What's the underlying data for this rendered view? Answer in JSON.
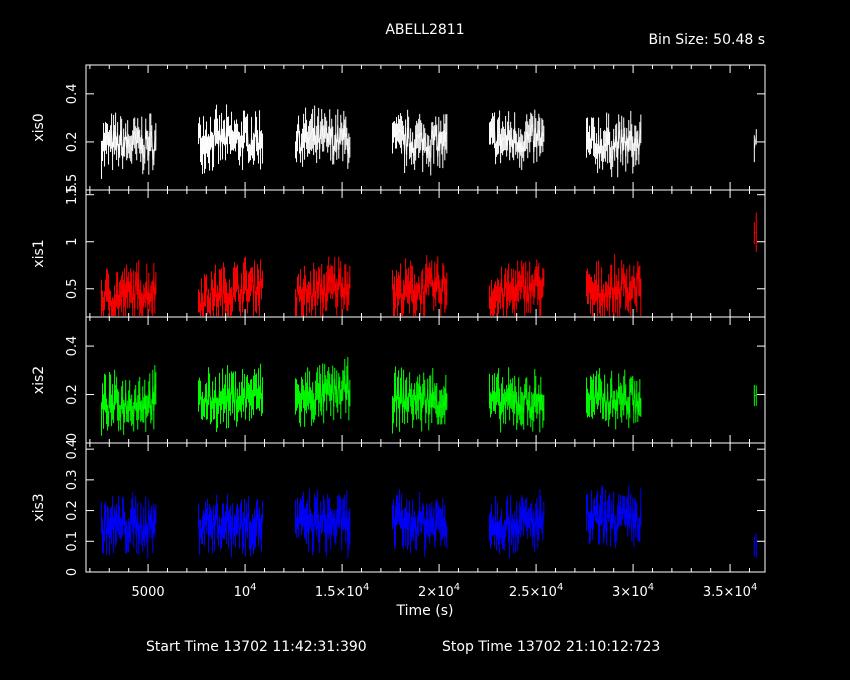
{
  "header": {
    "title": "ABELL2811",
    "bin_size": "Bin Size: 50.48 s"
  },
  "footer": {
    "start_time": "Start Time 13702 11:42:31:390",
    "stop_time": "Stop Time 13702 21:10:12:723"
  },
  "chart_data": {
    "type": "line",
    "xlabel": "Time (s)",
    "xlim": [
      1800,
      36800
    ],
    "x_ticks": [
      {
        "value": 5000,
        "label": "5000"
      },
      {
        "value": 10000,
        "label": "10",
        "exp": "4"
      },
      {
        "value": 15000,
        "label": "1.5×10",
        "exp": "4"
      },
      {
        "value": 20000,
        "label": "2×10",
        "exp": "4"
      },
      {
        "value": 25000,
        "label": "2.5×10",
        "exp": "4"
      },
      {
        "value": 30000,
        "label": "3×10",
        "exp": "4"
      },
      {
        "value": 35000,
        "label": "3.5×10",
        "exp": "4"
      }
    ],
    "segments": [
      [
        2600,
        5400
      ],
      [
        7600,
        10900
      ],
      [
        12600,
        15400
      ],
      [
        17600,
        20400
      ],
      [
        22600,
        25400
      ],
      [
        27600,
        30400
      ],
      [
        36250,
        36350
      ]
    ],
    "panels": [
      {
        "name": "xis0",
        "color": "#ffffff",
        "ylim": [
          0.0,
          0.52
        ],
        "ticks": [
          {
            "v": 0.2,
            "l": "0.2"
          },
          {
            "v": 0.4,
            "l": "0.4"
          }
        ],
        "bottom_label": "1.5",
        "levels": [
          0.19,
          0.21,
          0.21,
          0.2,
          0.21,
          0.19,
          0.22
        ],
        "trend": [
          0,
          0,
          0,
          0,
          0,
          0,
          0
        ]
      },
      {
        "name": "xis1",
        "color": "#ff0000",
        "ylim": [
          0.2,
          1.55
        ],
        "ticks": [
          {
            "v": 0.5,
            "l": "0.5"
          },
          {
            "v": 1.0,
            "l": "1"
          },
          {
            "v": 1.5,
            "l": "1.5"
          }
        ],
        "levels": [
          0.42,
          0.44,
          0.45,
          0.47,
          0.45,
          0.46,
          1.0
        ],
        "trend": [
          0.1,
          0.16,
          0.18,
          0.08,
          0.14,
          0.12,
          0
        ]
      },
      {
        "name": "xis2",
        "color": "#00ff00",
        "ylim": [
          0.0,
          0.52
        ],
        "ticks": [
          {
            "v": 0.2,
            "l": "0.2"
          },
          {
            "v": 0.4,
            "l": "0.4"
          }
        ],
        "bottom_label": "0",
        "levels": [
          0.16,
          0.18,
          0.19,
          0.18,
          0.17,
          0.18,
          0.15
        ],
        "trend": [
          0.03,
          0.03,
          0.04,
          0,
          0,
          0,
          0
        ]
      },
      {
        "name": "xis3",
        "color": "#0000ff",
        "ylim": [
          0.0,
          0.42
        ],
        "ticks": [
          {
            "v": 0.0,
            "l": "0"
          },
          {
            "v": 0.1,
            "l": "0.1"
          },
          {
            "v": 0.2,
            "l": "0.2"
          },
          {
            "v": 0.3,
            "l": "0.3"
          },
          {
            "v": 0.4,
            "l": "0.4"
          }
        ],
        "levels": [
          0.15,
          0.16,
          0.16,
          0.16,
          0.16,
          0.17,
          0.1
        ],
        "trend": [
          0,
          0,
          0,
          0,
          0,
          0,
          0
        ]
      }
    ]
  }
}
